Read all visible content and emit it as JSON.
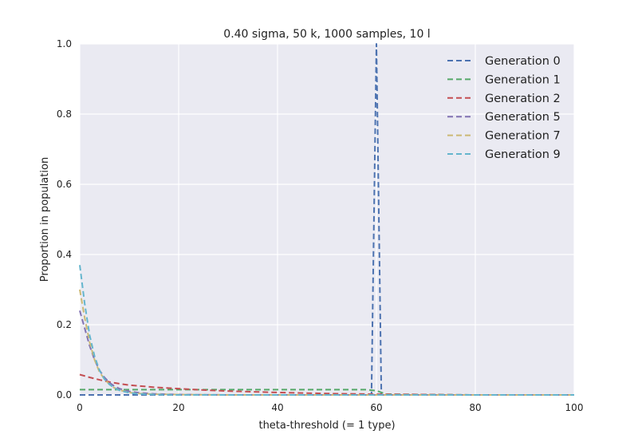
{
  "chart_data": {
    "type": "line",
    "title": "0.40 sigma, 50 k, 1000 samples, 10 l",
    "xlabel": "theta-threshold (= 1 type)",
    "ylabel": "Proportion in population",
    "xlim": [
      0,
      100
    ],
    "ylim": [
      0,
      1.0
    ],
    "xticks": [
      "0",
      "20",
      "40",
      "60",
      "80",
      "100"
    ],
    "yticks": [
      "0.0",
      "0.2",
      "0.4",
      "0.6",
      "0.8",
      "1.0"
    ],
    "grid": true,
    "legend_position": "top-right",
    "line_style": "dashed",
    "series": [
      {
        "name": "Generation 0",
        "color": "#4c72b0",
        "x": [
          0,
          55,
          59,
          60,
          61,
          65,
          100
        ],
        "y": [
          0,
          0,
          0,
          1.0,
          0,
          0,
          0
        ]
      },
      {
        "name": "Generation 1",
        "color": "#55a868",
        "x": [
          0,
          10,
          20,
          30,
          40,
          50,
          58,
          60,
          62,
          70,
          80,
          90,
          100
        ],
        "y": [
          0.015,
          0.015,
          0.015,
          0.015,
          0.015,
          0.015,
          0.015,
          0.012,
          0.002,
          0.001,
          0.0,
          0.0,
          0.0
        ]
      },
      {
        "name": "Generation 2",
        "color": "#c44e52",
        "x": [
          0,
          2,
          4,
          6,
          8,
          10,
          15,
          20,
          25,
          30,
          40,
          50,
          60,
          70,
          80,
          90,
          100
        ],
        "y": [
          0.058,
          0.05,
          0.043,
          0.037,
          0.032,
          0.028,
          0.022,
          0.018,
          0.014,
          0.011,
          0.007,
          0.004,
          0.002,
          0.001,
          0.0,
          0.0,
          0.0
        ]
      },
      {
        "name": "Generation 5",
        "color": "#8172b2",
        "x": [
          0,
          1,
          2,
          3,
          4,
          5,
          6,
          7,
          8,
          10,
          12,
          15,
          20,
          30,
          40,
          60,
          80,
          100
        ],
        "y": [
          0.24,
          0.19,
          0.14,
          0.1,
          0.07,
          0.05,
          0.035,
          0.025,
          0.018,
          0.01,
          0.006,
          0.003,
          0.001,
          0.0,
          0.0,
          0.0,
          0.0,
          0.0
        ]
      },
      {
        "name": "Generation 7",
        "color": "#ccb974",
        "x": [
          0,
          1,
          2,
          3,
          4,
          5,
          6,
          7,
          8,
          10,
          12,
          15,
          20,
          30,
          40,
          60,
          80,
          100
        ],
        "y": [
          0.3,
          0.22,
          0.15,
          0.1,
          0.065,
          0.045,
          0.03,
          0.02,
          0.014,
          0.007,
          0.004,
          0.002,
          0.001,
          0.0,
          0.0,
          0.0,
          0.0,
          0.0
        ]
      },
      {
        "name": "Generation 9",
        "color": "#64b5cd",
        "x": [
          0,
          1,
          2,
          3,
          4,
          5,
          6,
          7,
          8,
          10,
          12,
          15,
          20,
          30,
          40,
          60,
          80,
          100
        ],
        "y": [
          0.37,
          0.26,
          0.17,
          0.11,
          0.07,
          0.045,
          0.03,
          0.02,
          0.013,
          0.006,
          0.003,
          0.001,
          0.0,
          0.0,
          0.0,
          0.0,
          0.0,
          0.0
        ]
      }
    ]
  }
}
